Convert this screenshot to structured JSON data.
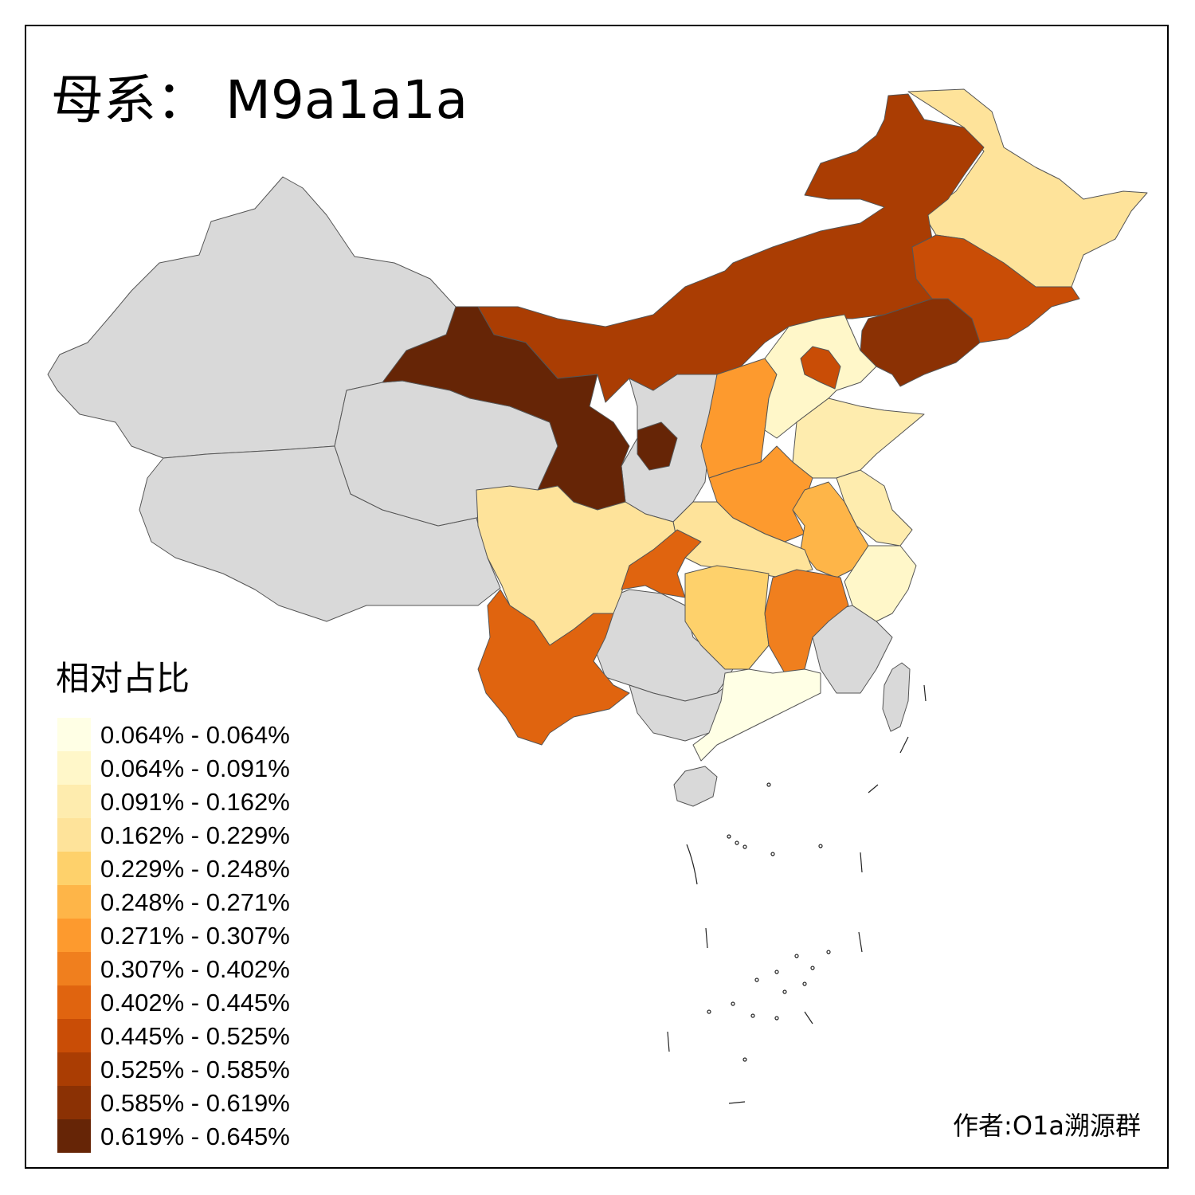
{
  "title": "母系： M9a1a1a",
  "legend": {
    "title": "相对占比",
    "bins": [
      {
        "label": "0.064% - 0.064%",
        "color": "#FFFFE5"
      },
      {
        "label": "0.064% - 0.091%",
        "color": "#FFF7C9"
      },
      {
        "label": "0.091% - 0.162%",
        "color": "#FEECAE"
      },
      {
        "label": "0.162% - 0.229%",
        "color": "#FEE39A"
      },
      {
        "label": "0.229% - 0.248%",
        "color": "#FED16B"
      },
      {
        "label": "0.248% - 0.271%",
        "color": "#FEB548"
      },
      {
        "label": "0.271% - 0.307%",
        "color": "#FD9A2E"
      },
      {
        "label": "0.307% - 0.402%",
        "color": "#F07F1E"
      },
      {
        "label": "0.402% - 0.445%",
        "color": "#E0640F"
      },
      {
        "label": "0.445% - 0.525%",
        "color": "#C94D06"
      },
      {
        "label": "0.525% - 0.585%",
        "color": "#AA3D03"
      },
      {
        "label": "0.585% - 0.619%",
        "color": "#8B3104"
      },
      {
        "label": "0.619% - 0.645%",
        "color": "#662506"
      }
    ]
  },
  "no_data_color": "#D9D9D9",
  "credit": "作者:O1a溯源群"
}
